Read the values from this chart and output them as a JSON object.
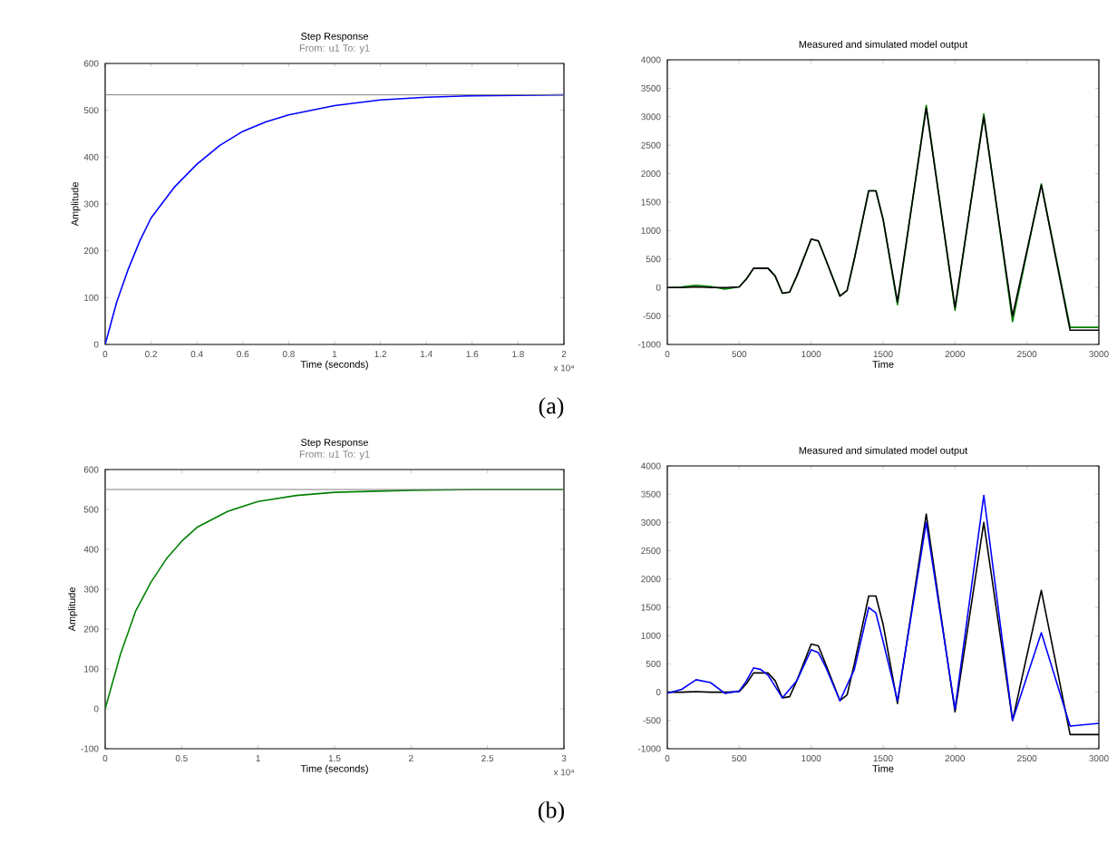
{
  "chart_data": [
    {
      "type": "line",
      "title": "Step Response",
      "subtitle": "From: u1  To: y1",
      "xlabel": "Time (seconds)",
      "ylabel": "Amplitude",
      "xlim": [
        0,
        2
      ],
      "xticks": [
        0,
        0.2,
        0.4,
        0.6,
        0.8,
        1,
        1.2,
        1.4,
        1.6,
        1.8,
        2
      ],
      "ylim": [
        0,
        600
      ],
      "yticks": [
        0,
        100,
        200,
        300,
        400,
        500,
        600
      ],
      "series": [
        {
          "color": "#0000ff",
          "x": [
            0,
            0.05,
            0.1,
            0.15,
            0.2,
            0.3,
            0.4,
            0.5,
            0.6,
            0.7,
            0.8,
            1.0,
            1.2,
            1.4,
            1.6,
            1.8,
            2.0
          ],
          "values": [
            0,
            90,
            160,
            220,
            270,
            335,
            385,
            425,
            455,
            475,
            490,
            510,
            522,
            528,
            531,
            532,
            533
          ]
        }
      ],
      "ref_lines": [
        {
          "axis": "y",
          "value": 533,
          "color": "#808080"
        }
      ],
      "annotations": [
        "x 10⁴",
        "(a)"
      ]
    },
    {
      "type": "line",
      "title": "Measured and simulated model output",
      "xlabel": "Time",
      "xlim": [
        0,
        3000
      ],
      "xticks": [
        0,
        500,
        1000,
        1500,
        2000,
        2500,
        3000
      ],
      "ylim": [
        -1000,
        4000
      ],
      "yticks": [
        -1000,
        -500,
        0,
        500,
        1000,
        1500,
        2000,
        2500,
        3000,
        3500,
        4000
      ],
      "series": [
        {
          "color": "#008000",
          "x": [
            0,
            100,
            200,
            300,
            400,
            500,
            550,
            600,
            700,
            750,
            800,
            850,
            900,
            1000,
            1050,
            1100,
            1200,
            1250,
            1300,
            1400,
            1450,
            1500,
            1600,
            1800,
            2000,
            2200,
            2400,
            2600,
            2800,
            3000
          ],
          "values": [
            0,
            10,
            40,
            20,
            -30,
            10,
            150,
            340,
            340,
            200,
            -100,
            -80,
            200,
            850,
            820,
            500,
            -150,
            -50,
            500,
            1700,
            1700,
            1200,
            -300,
            3200,
            -400,
            3050,
            -600,
            1820,
            -700,
            -700
          ]
        },
        {
          "color": "#000000",
          "x": [
            0,
            100,
            200,
            300,
            400,
            500,
            550,
            600,
            700,
            750,
            800,
            850,
            900,
            1000,
            1050,
            1100,
            1200,
            1250,
            1300,
            1400,
            1450,
            1500,
            1600,
            1800,
            2000,
            2200,
            2400,
            2600,
            2800,
            3000
          ],
          "values": [
            0,
            0,
            10,
            0,
            0,
            10,
            150,
            340,
            340,
            200,
            -100,
            -80,
            200,
            850,
            820,
            500,
            -150,
            -50,
            500,
            1700,
            1700,
            1200,
            -250,
            3150,
            -350,
            3000,
            -500,
            1800,
            -750,
            -750
          ]
        }
      ]
    },
    {
      "type": "line",
      "title": "Step Response",
      "subtitle": "From: u1  To: y1",
      "xlabel": "Time (seconds)",
      "ylabel": "Amplitude",
      "xlim": [
        0,
        3
      ],
      "xticks": [
        0,
        0.5,
        1,
        1.5,
        2,
        2.5,
        3
      ],
      "ylim": [
        -100,
        600
      ],
      "yticks": [
        -100,
        0,
        100,
        200,
        300,
        400,
        500,
        600
      ],
      "series": [
        {
          "color": "#008000",
          "x": [
            0,
            0.1,
            0.2,
            0.3,
            0.4,
            0.5,
            0.6,
            0.8,
            1.0,
            1.25,
            1.5,
            2,
            2.5,
            3
          ],
          "values": [
            0,
            137,
            246,
            318,
            376,
            420,
            455,
            495,
            520,
            535,
            543,
            548,
            550,
            550
          ]
        }
      ],
      "ref_lines": [
        {
          "axis": "y",
          "value": 550,
          "color": "#808080"
        }
      ],
      "annotations": [
        "x 10⁴",
        "(b)"
      ]
    },
    {
      "type": "line",
      "title": "Measured and simulated model output",
      "xlabel": "Time",
      "xlim": [
        0,
        3000
      ],
      "xticks": [
        0,
        500,
        1000,
        1500,
        2000,
        2500,
        3000
      ],
      "ylim": [
        -1000,
        4000
      ],
      "yticks": [
        -1000,
        -500,
        0,
        500,
        1000,
        1500,
        2000,
        2500,
        3000,
        3500,
        4000
      ],
      "series": [
        {
          "color": "#000000",
          "x": [
            0,
            100,
            200,
            300,
            400,
            500,
            550,
            600,
            700,
            750,
            800,
            850,
            900,
            1000,
            1050,
            1100,
            1200,
            1250,
            1300,
            1400,
            1450,
            1500,
            1600,
            1800,
            2000,
            2200,
            2400,
            2600,
            2800,
            3000
          ],
          "values": [
            0,
            0,
            10,
            0,
            0,
            10,
            150,
            340,
            340,
            200,
            -100,
            -80,
            200,
            850,
            820,
            500,
            -150,
            -50,
            500,
            1700,
            1700,
            1200,
            -200,
            3150,
            -350,
            3000,
            -500,
            1800,
            -750,
            -750
          ]
        },
        {
          "color": "#0000ff",
          "x": [
            0,
            100,
            200,
            300,
            400,
            500,
            550,
            600,
            650,
            700,
            800,
            900,
            1000,
            1050,
            1100,
            1200,
            1300,
            1400,
            1450,
            1500,
            1600,
            1800,
            2000,
            2200,
            2400,
            2600,
            2800,
            3000
          ],
          "values": [
            -20,
            50,
            220,
            170,
            -20,
            20,
            200,
            430,
            400,
            300,
            -100,
            200,
            750,
            700,
            450,
            -150,
            400,
            1500,
            1400,
            900,
            -150,
            3000,
            -300,
            3480,
            -500,
            1050,
            -600,
            -550
          ]
        }
      ]
    }
  ]
}
